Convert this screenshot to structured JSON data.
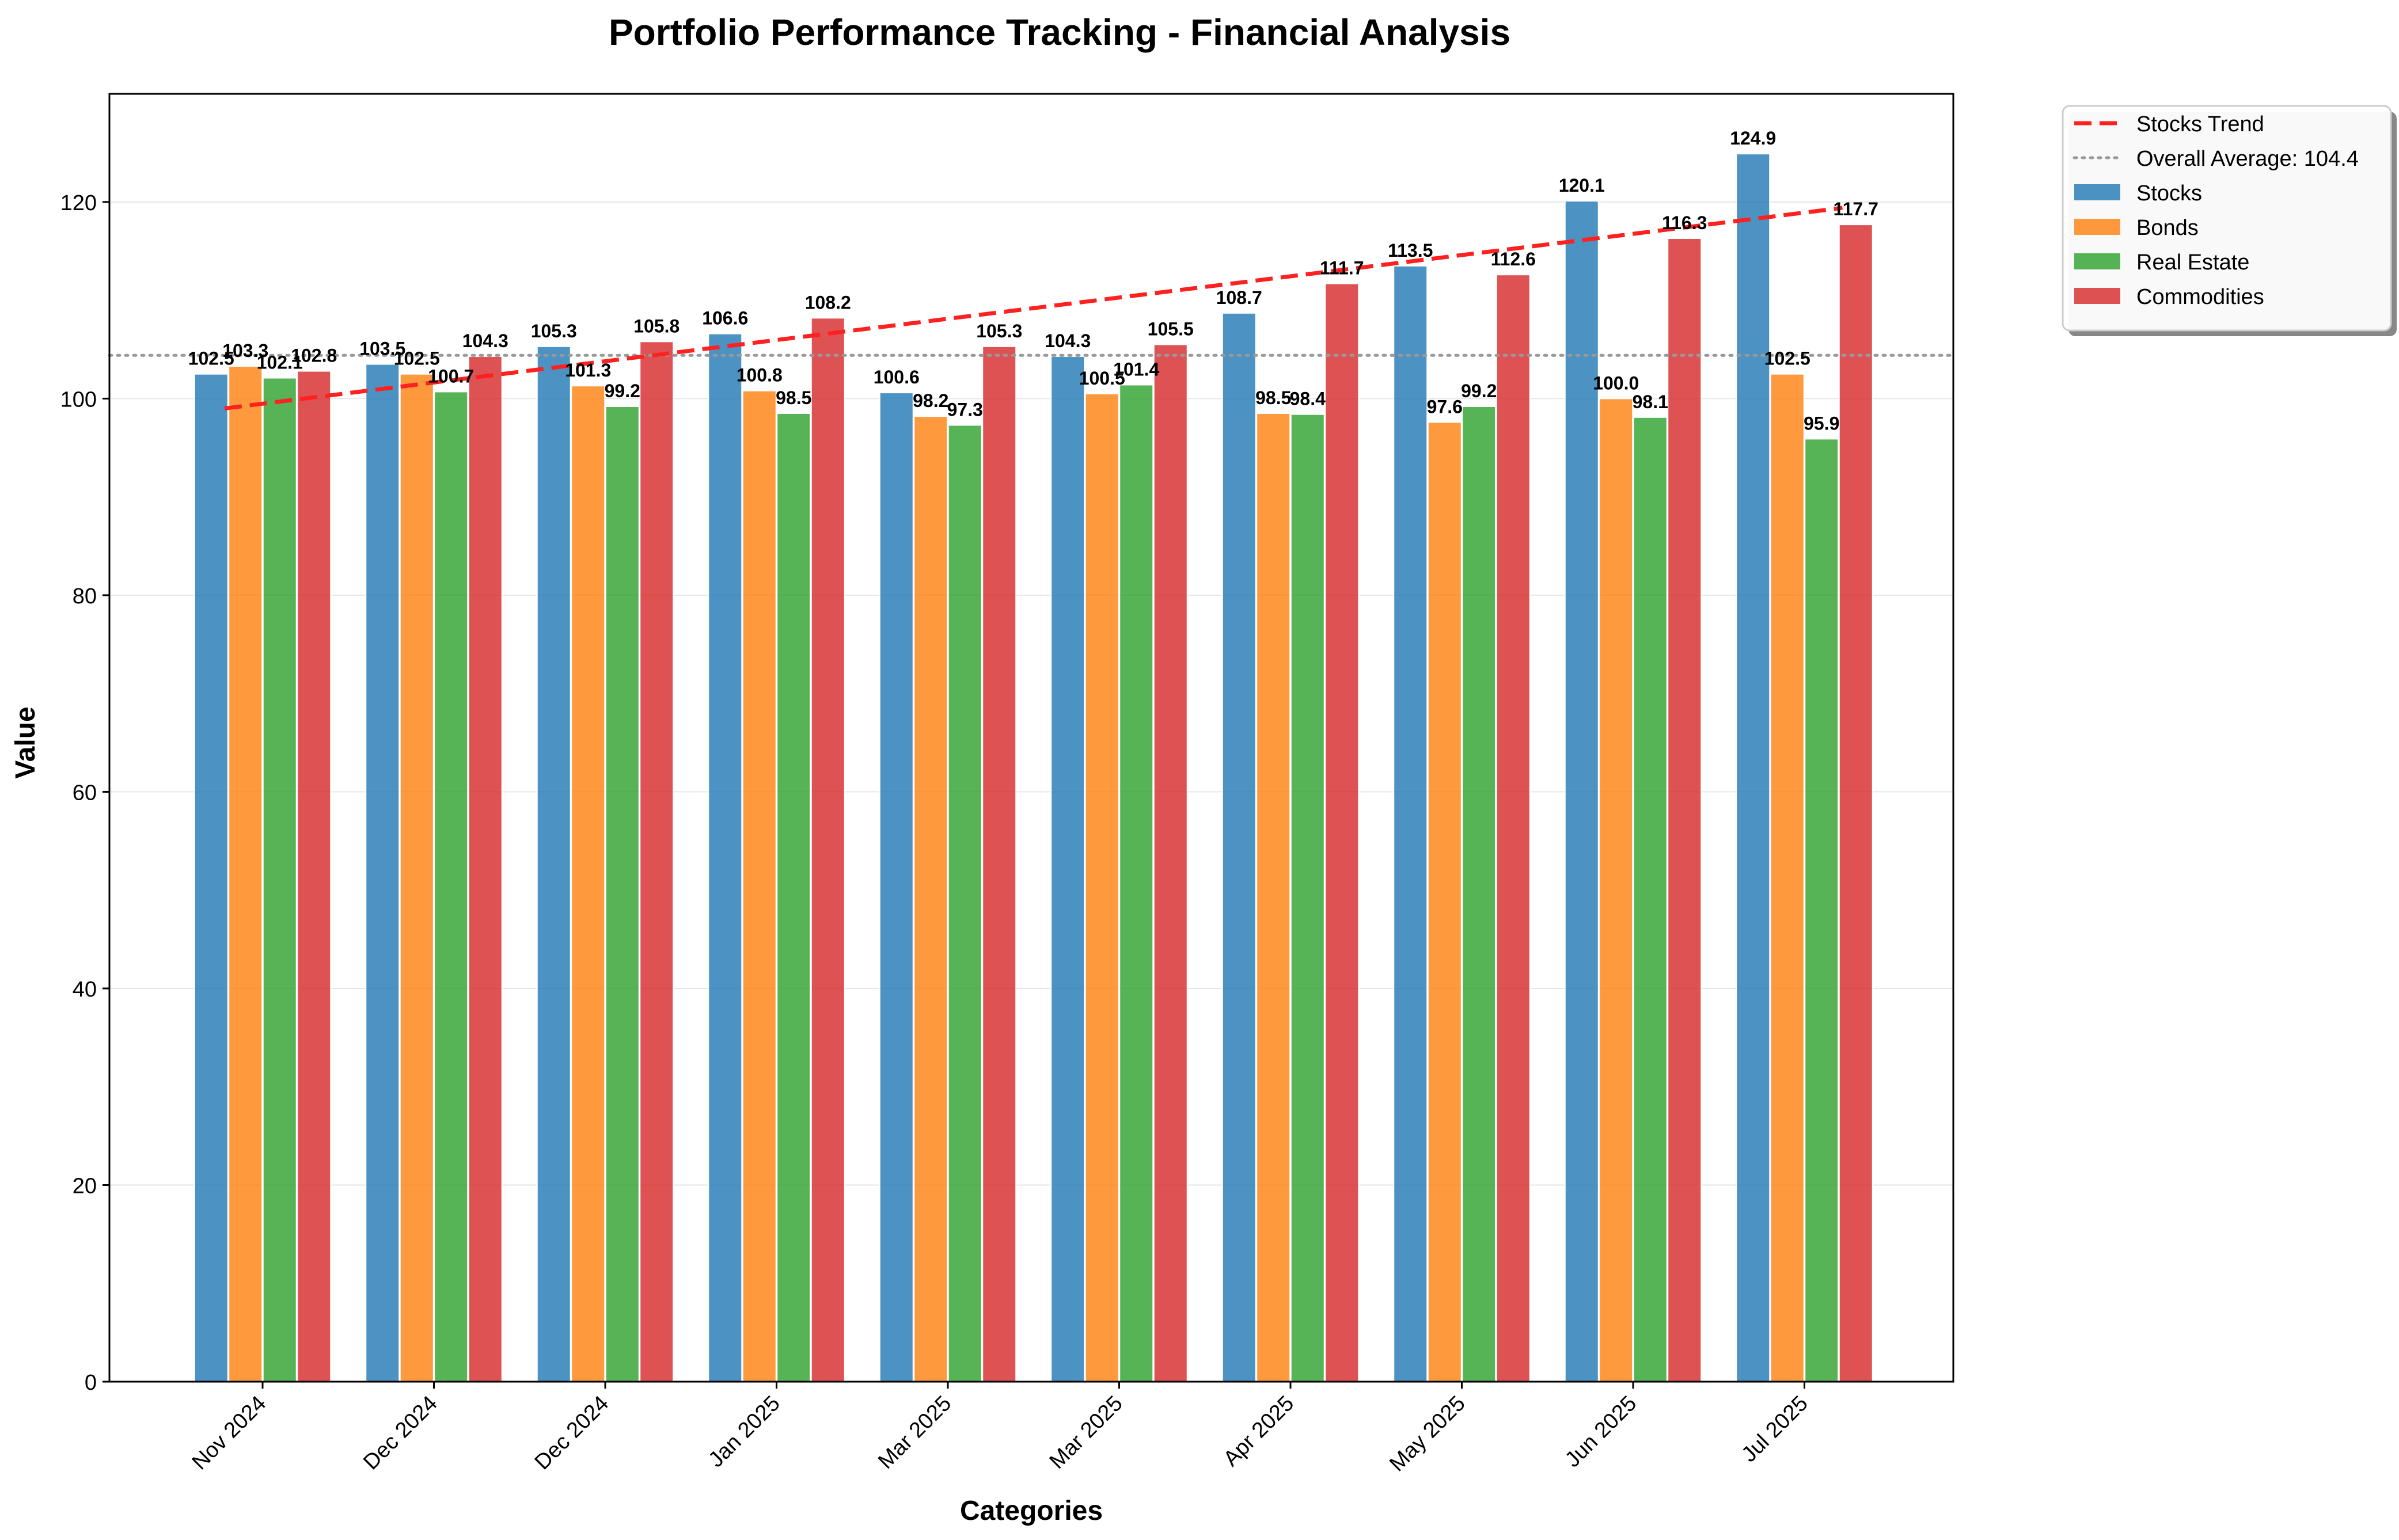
{
  "chart_data": {
    "type": "bar",
    "title": "Portfolio Performance Tracking - Financial Analysis",
    "xlabel": "Categories",
    "ylabel": "Value",
    "categories": [
      "Nov 2024",
      "Dec 2024",
      "Dec 2024",
      "Jan 2025",
      "Mar 2025",
      "Mar 2025",
      "Apr 2025",
      "May 2025",
      "Jun 2025",
      "Jul 2025"
    ],
    "ylim": [
      0,
      131
    ],
    "yticks": [
      0,
      20,
      40,
      60,
      80,
      100,
      120
    ],
    "grid": true,
    "legend_position": "top-right",
    "series": [
      {
        "name": "Stocks",
        "color": "#1f77b4",
        "values": [
          102.5,
          103.5,
          105.3,
          106.6,
          100.6,
          104.3,
          108.7,
          113.5,
          120.1,
          124.9
        ]
      },
      {
        "name": "Bonds",
        "color": "#ff7f0e",
        "values": [
          103.3,
          102.5,
          101.3,
          100.8,
          98.2,
          100.5,
          98.5,
          97.6,
          100.0,
          102.5
        ]
      },
      {
        "name": "Real Estate",
        "color": "#2ca02c",
        "values": [
          102.1,
          100.7,
          99.2,
          98.5,
          97.3,
          101.4,
          98.4,
          99.2,
          98.1,
          95.9
        ]
      },
      {
        "name": "Commodities",
        "color": "#d62728",
        "values": [
          102.8,
          104.3,
          105.8,
          108.2,
          105.3,
          105.5,
          111.7,
          112.6,
          116.3,
          117.7
        ]
      }
    ],
    "trend_line": {
      "name": "Stocks Trend",
      "color": "#ff2020",
      "start": 99.0,
      "end": 119.4
    },
    "average_line": {
      "label": "Overall Average: 104.4",
      "value": 104.4,
      "color": "#999999"
    }
  }
}
